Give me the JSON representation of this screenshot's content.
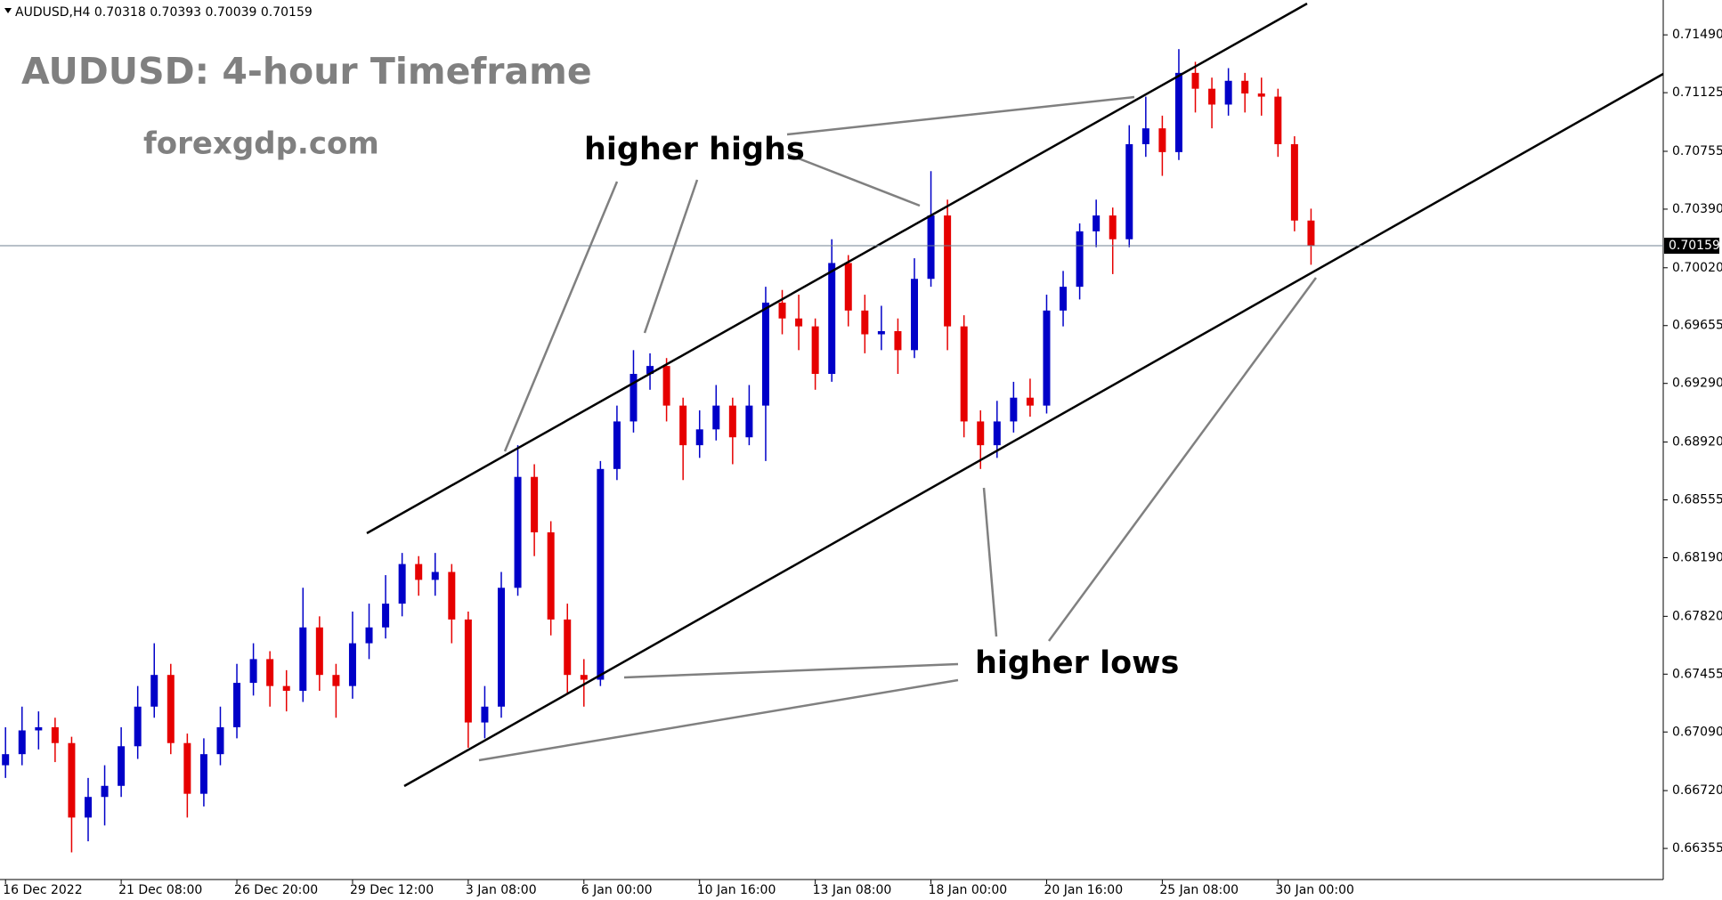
{
  "chart_data": {
    "type": "candlestick",
    "header": "AUDUSD,H4 0.70318 0.70393 0.70039 0.70159",
    "title": "AUDUSD: 4-hour Timeframe",
    "subtitle": "forexgdp.com",
    "annotations": [
      "higher highs",
      "higher lows"
    ],
    "up_color": "#0000c8",
    "down_color": "#e60000",
    "categories": [
      "16 Dec 2022",
      null,
      null,
      null,
      null,
      null,
      null,
      "21 Dec 08:00",
      null,
      null,
      null,
      null,
      null,
      null,
      "26 Dec 20:00",
      null,
      null,
      null,
      null,
      null,
      null,
      "29 Dec 12:00",
      null,
      null,
      null,
      null,
      null,
      null,
      "3 Jan 08:00",
      null,
      null,
      null,
      null,
      null,
      null,
      "6 Jan 00:00",
      null,
      null,
      null,
      null,
      null,
      null,
      "10 Jan 16:00",
      null,
      null,
      null,
      null,
      null,
      null,
      "13 Jan 08:00",
      null,
      null,
      null,
      null,
      null,
      null,
      "18 Jan 00:00",
      null,
      null,
      null,
      null,
      null,
      null,
      "20 Jan 16:00",
      null,
      null,
      null,
      null,
      null,
      null,
      "25 Jan 08:00",
      null,
      null,
      null,
      null,
      null,
      null,
      "30 Jan 00:00",
      null,
      null
    ],
    "open": [
      0.6688,
      0.6695,
      0.671,
      0.6712,
      0.6702,
      0.6655,
      0.6668,
      0.6675,
      0.67,
      0.6725,
      0.6745,
      0.6702,
      0.667,
      0.6695,
      0.6712,
      0.674,
      0.6755,
      0.6738,
      0.6735,
      0.6775,
      0.6745,
      0.6738,
      0.6765,
      0.6775,
      0.679,
      0.6815,
      0.6805,
      0.681,
      0.678,
      0.6715,
      0.6725,
      0.68,
      0.687,
      0.6835,
      0.678,
      0.6745,
      0.6742,
      0.6875,
      0.6905,
      0.6935,
      0.694,
      0.6915,
      0.689,
      0.69,
      0.6915,
      0.6895,
      0.6915,
      0.698,
      0.697,
      0.6965,
      0.6935,
      0.7005,
      0.6975,
      0.696,
      0.6962,
      0.695,
      0.6995,
      0.7035,
      0.6965,
      0.6905,
      0.689,
      0.6905,
      0.692,
      0.6915,
      0.6975,
      0.699,
      0.7025,
      0.7035,
      0.702,
      0.708,
      0.709,
      0.7075,
      0.7125,
      0.7115,
      0.7105,
      0.712,
      0.7112,
      0.711,
      0.708,
      0.70318
    ],
    "high": [
      0.6712,
      0.6725,
      0.6722,
      0.6718,
      0.6706,
      0.668,
      0.6688,
      0.6712,
      0.6738,
      0.6765,
      0.6752,
      0.6708,
      0.6705,
      0.6725,
      0.6752,
      0.6765,
      0.676,
      0.6748,
      0.68,
      0.6782,
      0.6752,
      0.6785,
      0.679,
      0.6808,
      0.6822,
      0.682,
      0.6822,
      0.6815,
      0.6785,
      0.6738,
      0.681,
      0.689,
      0.6878,
      0.6842,
      0.679,
      0.6755,
      0.688,
      0.6915,
      0.695,
      0.6948,
      0.6945,
      0.692,
      0.6912,
      0.6928,
      0.692,
      0.6928,
      0.699,
      0.6988,
      0.6985,
      0.697,
      0.702,
      0.701,
      0.6985,
      0.6978,
      0.697,
      0.7008,
      0.7063,
      0.7045,
      0.6972,
      0.6912,
      0.6918,
      0.693,
      0.6932,
      0.6985,
      0.7,
      0.703,
      0.7045,
      0.704,
      0.7092,
      0.711,
      0.7098,
      0.714,
      0.7132,
      0.7122,
      0.7128,
      0.7125,
      0.7122,
      0.7115,
      0.7085,
      0.70393
    ],
    "low": [
      0.668,
      0.6688,
      0.6698,
      0.669,
      0.6633,
      0.664,
      0.665,
      0.6668,
      0.6692,
      0.6718,
      0.6695,
      0.6655,
      0.6662,
      0.6688,
      0.6705,
      0.6732,
      0.6725,
      0.6722,
      0.6728,
      0.6735,
      0.6718,
      0.673,
      0.6755,
      0.6768,
      0.6782,
      0.6795,
      0.6795,
      0.6765,
      0.6699,
      0.6705,
      0.6718,
      0.6795,
      0.682,
      0.677,
      0.6733,
      0.6725,
      0.6738,
      0.6868,
      0.6898,
      0.6925,
      0.6905,
      0.6868,
      0.6882,
      0.6893,
      0.6878,
      0.689,
      0.688,
      0.696,
      0.695,
      0.6925,
      0.693,
      0.6965,
      0.6948,
      0.695,
      0.6935,
      0.6945,
      0.699,
      0.695,
      0.6895,
      0.6875,
      0.6882,
      0.6898,
      0.6908,
      0.691,
      0.6965,
      0.6982,
      0.7015,
      0.6998,
      0.7015,
      0.7072,
      0.706,
      0.707,
      0.71,
      0.709,
      0.7098,
      0.71,
      0.7098,
      0.7072,
      0.7025,
      0.70039
    ],
    "close": [
      0.6695,
      0.671,
      0.6712,
      0.6702,
      0.6655,
      0.6668,
      0.6675,
      0.67,
      0.6725,
      0.6745,
      0.6702,
      0.667,
      0.6695,
      0.6712,
      0.674,
      0.6755,
      0.6738,
      0.6735,
      0.6775,
      0.6745,
      0.6738,
      0.6765,
      0.6775,
      0.679,
      0.6815,
      0.6805,
      0.681,
      0.678,
      0.6715,
      0.6725,
      0.68,
      0.687,
      0.6835,
      0.678,
      0.6745,
      0.6742,
      0.6875,
      0.6905,
      0.6935,
      0.694,
      0.6915,
      0.689,
      0.69,
      0.6915,
      0.6895,
      0.6915,
      0.698,
      0.697,
      0.6965,
      0.6935,
      0.7005,
      0.6975,
      0.696,
      0.6962,
      0.695,
      0.6995,
      0.7035,
      0.6965,
      0.6905,
      0.689,
      0.6905,
      0.692,
      0.6915,
      0.6975,
      0.699,
      0.7025,
      0.7035,
      0.702,
      0.708,
      0.709,
      0.7075,
      0.7125,
      0.7115,
      0.7105,
      0.712,
      0.7112,
      0.711,
      0.708,
      0.70318,
      0.70159
    ],
    "last_price": 0.70159,
    "ylim": [
      0.6617,
      0.7171
    ],
    "yticks": [
      {
        "value": 0.66355,
        "label": "0.66355"
      },
      {
        "value": 0.6672,
        "label": "0.66720"
      },
      {
        "value": 0.6709,
        "label": "0.67090"
      },
      {
        "value": 0.67455,
        "label": "0.67455"
      },
      {
        "value": 0.6782,
        "label": "0.67820"
      },
      {
        "value": 0.6819,
        "label": "0.68190"
      },
      {
        "value": 0.68555,
        "label": "0.68555"
      },
      {
        "value": 0.6892,
        "label": "0.68920"
      },
      {
        "value": 0.6929,
        "label": "0.69290"
      },
      {
        "value": 0.69655,
        "label": "0.69655"
      },
      {
        "value": 0.7002,
        "label": "0.70020"
      },
      {
        "value": 0.7039,
        "label": "0.70390"
      },
      {
        "value": 0.70755,
        "label": "0.70755"
      },
      {
        "value": 0.71125,
        "label": "0.71125"
      },
      {
        "value": 0.7149,
        "label": "0.71490"
      }
    ]
  }
}
